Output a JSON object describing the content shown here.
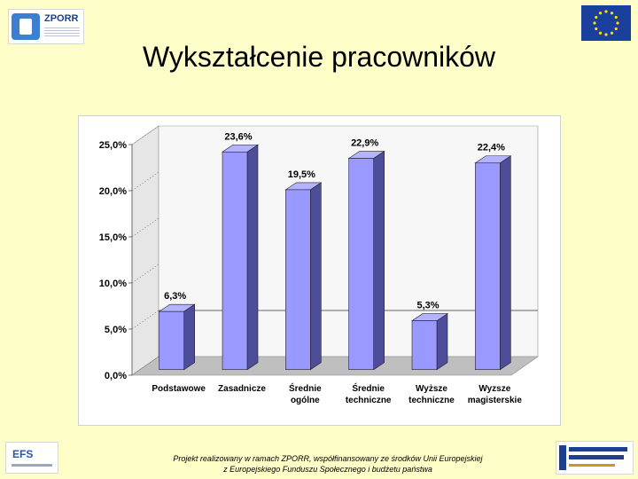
{
  "header": {
    "title": "Wykształcenie pracowników",
    "logo_left_text": "ZPORR"
  },
  "footer": {
    "line1": "Projekt realizowany w ramach ZPORR, współfinansowany ze środków Unii Europejskiej",
    "line2": "z Europejskiego Funduszu Społecznego i budżetu państwa",
    "logo_left_text": "EFS"
  },
  "colors": {
    "background": "#fefec8",
    "bar_front": "#9999ff",
    "bar_side": "#4d4d99",
    "bar_top": "#b3b3ff",
    "back_wall": "#f7f7f7",
    "floor": "#bfbfbf"
  },
  "chart_data": {
    "type": "bar",
    "title": "",
    "xlabel": "",
    "ylabel": "",
    "categories": [
      [
        "Podstawowe"
      ],
      [
        "Zasadnicze"
      ],
      [
        "Średnie",
        "ogólne"
      ],
      [
        "Średnie",
        "techniczne"
      ],
      [
        "Wyższe",
        "techniczne"
      ],
      [
        "Wyzsze",
        "magisterskie"
      ]
    ],
    "values": [
      6.3,
      23.6,
      19.5,
      22.9,
      5.3,
      22.4
    ],
    "value_labels": [
      "6,3%",
      "23,6%",
      "19,5%",
      "22,9%",
      "5,3%",
      "22,4%"
    ],
    "yticks": [
      "0,0%",
      "5,0%",
      "10,0%",
      "15,0%",
      "20,0%",
      "25,0%"
    ],
    "ylim": [
      0,
      25
    ],
    "grid": false,
    "legend": "none",
    "style": "3d"
  }
}
